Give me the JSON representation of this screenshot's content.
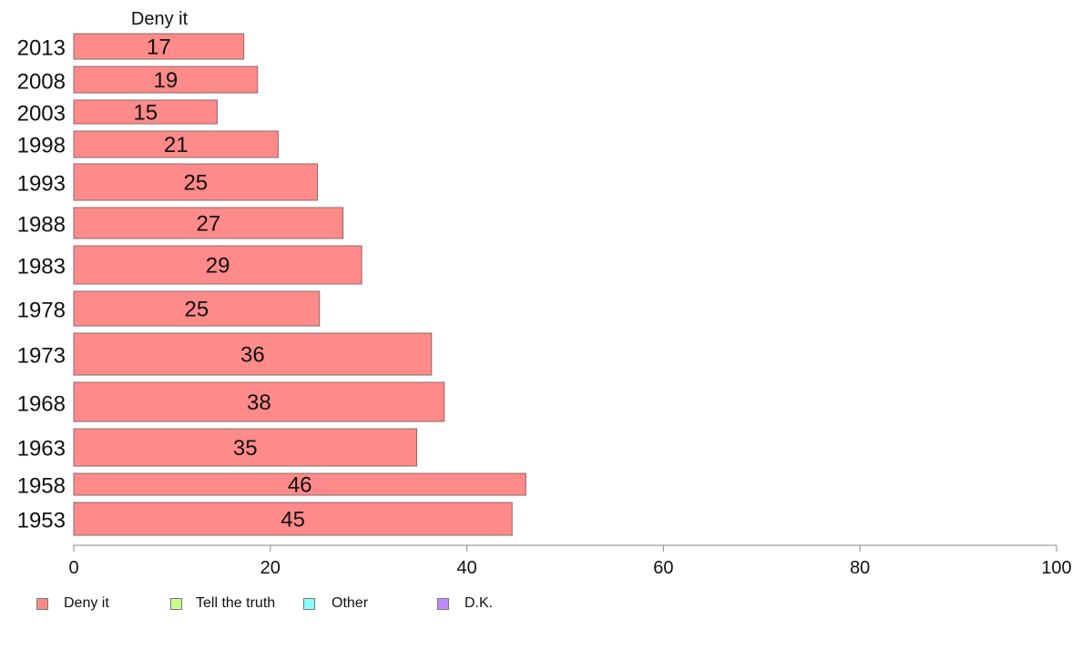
{
  "chart_data": {
    "type": "bar",
    "orientation": "horizontal",
    "title": "Deny it",
    "categories": [
      "2013",
      "2008",
      "2003",
      "1998",
      "1993",
      "1988",
      "1983",
      "1978",
      "1973",
      "1968",
      "1963",
      "1958",
      "1953"
    ],
    "series": [
      {
        "name": "Deny it",
        "values": [
          17,
          19,
          15,
          21,
          25,
          27,
          29,
          25,
          36,
          38,
          35,
          46,
          45
        ],
        "labels": [
          "17",
          "19",
          "15",
          "21",
          "25",
          "27",
          "29",
          "25",
          "36",
          "38",
          "35",
          "46",
          "45"
        ],
        "color": "#ff8a8a"
      }
    ],
    "exact_values": [
      17.3,
      18.7,
      14.6,
      20.8,
      24.8,
      27.4,
      29.3,
      25.0,
      36.4,
      37.7,
      34.9,
      46.0,
      44.6
    ],
    "xlim": [
      0,
      100
    ],
    "xticks": [
      "0",
      "20",
      "40",
      "60",
      "80",
      "100"
    ],
    "grid": false,
    "legend_position": "bottom",
    "legend": [
      {
        "label": "Deny it",
        "color": "#ff8a8a"
      },
      {
        "label": "Tell the truth",
        "color": "#c8ff8a"
      },
      {
        "label": "Other",
        "color": "#8affff"
      },
      {
        "label": "D.K.",
        "color": "#c08aff"
      }
    ]
  }
}
